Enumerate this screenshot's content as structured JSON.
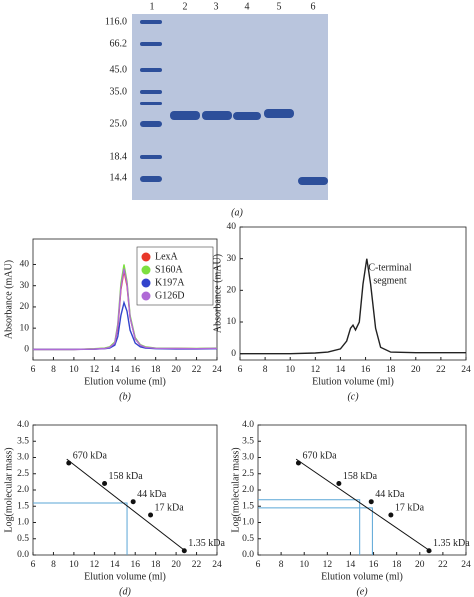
{
  "gel": {
    "lanes": [
      "1",
      "2",
      "3",
      "4",
      "5",
      "6"
    ],
    "markers": [
      "116.0",
      "66.2",
      "45.0",
      "35.0",
      "25.0",
      "18.4",
      "14.4"
    ],
    "caption": "(a)"
  },
  "chart_data": [
    {
      "type": "line",
      "caption": "(b)",
      "xlabel": "Elution volume (ml)",
      "ylabel": "Absorbance (mAU)",
      "xlim": [
        6,
        24
      ],
      "xticks": [
        6,
        8,
        10,
        12,
        14,
        16,
        18,
        20,
        22,
        24
      ],
      "ylim": [
        -5,
        52
      ],
      "yticks": [
        0,
        10,
        20,
        30,
        40
      ],
      "legend": "upper right",
      "x": [
        6,
        8,
        10,
        12,
        13,
        13.5,
        14,
        14.3,
        14.6,
        14.9,
        15.2,
        15.5,
        16,
        16.5,
        17,
        18,
        20,
        22,
        24
      ],
      "series": [
        {
          "name": "LexA",
          "color": "#e8382a",
          "values": [
            0,
            0,
            0,
            0.2,
            0.5,
            1,
            3,
            10,
            28,
            37,
            30,
            15,
            5,
            2,
            1,
            0.5,
            0.5,
            0.3,
            0.5
          ]
        },
        {
          "name": "S160A",
          "color": "#7de040",
          "values": [
            0,
            0,
            0,
            0.3,
            0.6,
            1.2,
            3.5,
            12,
            31,
            40,
            32,
            16,
            5.5,
            2.2,
            1.2,
            0.6,
            0.5,
            0.4,
            0.6
          ]
        },
        {
          "name": "K197A",
          "color": "#3344cc",
          "values": [
            0,
            0,
            0,
            0.1,
            0.3,
            0.6,
            2,
            6,
            16,
            22,
            18,
            9,
            3,
            1.2,
            0.6,
            0.3,
            0.2,
            0.2,
            0.3
          ]
        },
        {
          "name": "G126D",
          "color": "#b06ad6",
          "values": [
            0,
            0,
            0,
            0.2,
            0.4,
            1,
            3,
            11,
            29,
            38,
            31,
            15,
            5,
            2,
            1,
            0.5,
            0.4,
            0.3,
            0.5
          ]
        }
      ]
    },
    {
      "type": "line",
      "caption": "(c)",
      "xlabel": "Elution volume (ml)",
      "ylabel": "Absorbance (mAU)",
      "xlim": [
        6,
        24
      ],
      "xticks": [
        6,
        8,
        10,
        12,
        14,
        16,
        18,
        20,
        22,
        24
      ],
      "ylim": [
        -2,
        40
      ],
      "yticks": [
        0,
        10,
        20,
        30,
        40
      ],
      "annotation": [
        "C-terminal",
        "segment"
      ],
      "x": [
        6,
        8,
        10,
        12,
        13,
        14,
        14.5,
        14.8,
        15,
        15.2,
        15.5,
        15.8,
        16.1,
        16.4,
        16.8,
        17.2,
        18,
        20,
        22,
        24
      ],
      "series": [
        {
          "name": null,
          "color": "#222222",
          "values": [
            0,
            0,
            0,
            0.2,
            0.5,
            1.5,
            4,
            8,
            9,
            7.5,
            10,
            22,
            30,
            22,
            8,
            2,
            0.5,
            0.3,
            0.3,
            0.3
          ]
        }
      ]
    },
    {
      "type": "scatter",
      "caption": "(d)",
      "xlabel": "Elution volume (ml)",
      "ylabel": "Log(molecular mass)",
      "xlim": [
        6,
        24
      ],
      "xticks": [
        6,
        8,
        10,
        12,
        14,
        16,
        18,
        20,
        22,
        24
      ],
      "ylim": [
        0,
        4
      ],
      "yticks": [
        {
          "value": 0,
          "label": "0.0"
        },
        {
          "value": 0.5,
          "label": "0.5"
        },
        {
          "value": 1,
          "label": "1.0"
        },
        {
          "value": 1.5,
          "label": "1.5"
        },
        {
          "value": 2,
          "label": "2.0"
        },
        {
          "value": 2.5,
          "label": "2.5"
        },
        {
          "value": 3,
          "label": "3.0"
        },
        {
          "value": 3.5,
          "label": "3.5"
        },
        {
          "value": 4,
          "label": "4.0"
        }
      ],
      "x": [
        9.5,
        13,
        15.8,
        17.5,
        20.8
      ],
      "values": [
        2.83,
        2.2,
        1.64,
        1.23,
        0.13
      ],
      "point_labels": [
        "670 kDa",
        "158 kDa",
        "44 kDa",
        "17 kDa",
        "1.35 kDa"
      ],
      "fit_line": {
        "x": [
          9.3,
          21
        ],
        "y": [
          2.95,
          0.1
        ]
      },
      "guides": [
        {
          "x": 15.2,
          "y": 1.6
        }
      ]
    },
    {
      "type": "scatter",
      "caption": "(e)",
      "xlabel": "Elution volume (ml)",
      "ylabel": "Log(molecular mass)",
      "xlim": [
        6,
        24
      ],
      "xticks": [
        6,
        8,
        10,
        12,
        14,
        16,
        18,
        20,
        22,
        24
      ],
      "ylim": [
        0,
        4
      ],
      "yticks": [
        {
          "value": 0,
          "label": "0.0"
        },
        {
          "value": 0.5,
          "label": "0.5"
        },
        {
          "value": 1,
          "label": "1.0"
        },
        {
          "value": 1.5,
          "label": "1.5"
        },
        {
          "value": 2,
          "label": "2.0"
        },
        {
          "value": 2.5,
          "label": "2.5"
        },
        {
          "value": 3,
          "label": "3.0"
        },
        {
          "value": 3.5,
          "label": "3.5"
        },
        {
          "value": 4,
          "label": "4.0"
        }
      ],
      "x": [
        9.5,
        13,
        15.8,
        17.5,
        20.8
      ],
      "values": [
        2.83,
        2.2,
        1.64,
        1.23,
        0.13
      ],
      "point_labels": [
        "670 kDa",
        "158 kDa",
        "44 kDa",
        "17 kDa",
        "1.35 kDa"
      ],
      "fit_line": {
        "x": [
          9.3,
          21
        ],
        "y": [
          2.95,
          0.1
        ]
      },
      "guides": [
        {
          "x": 14.8,
          "y": 1.7
        },
        {
          "x": 15.9,
          "y": 1.45
        }
      ]
    }
  ]
}
